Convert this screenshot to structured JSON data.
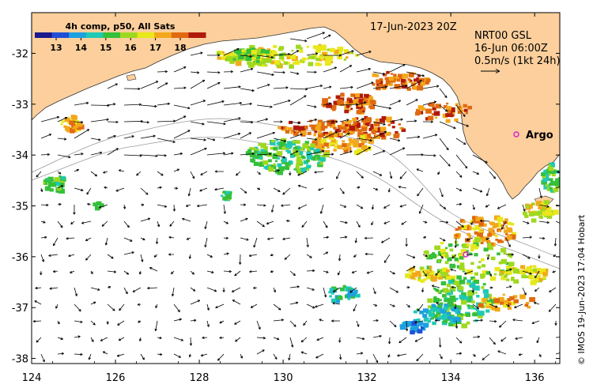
{
  "title_date": "17-Jun-2023 20Z",
  "legend": {
    "title": "4h comp, p50, All Sats",
    "ticks": [
      "13",
      "14",
      "15",
      "16",
      "17",
      "18"
    ],
    "colors": [
      "#1a1a8c",
      "#1f4fd6",
      "#1ea0e0",
      "#1fc9b4",
      "#35c03a",
      "#9fd81f",
      "#e8e81a",
      "#f2a81a",
      "#e06a10",
      "#b01a0a"
    ]
  },
  "currents": {
    "line1": "NRT00 GSL",
    "line2": "16-Jun 06:00Z",
    "line3": "0.5m/s (1kt 24h)"
  },
  "argo": {
    "label": "Argo",
    "color": "#e020d0"
  },
  "credit": "© IMOS 19-Jun-2023 17:04 Hobart",
  "axes": {
    "x_labels": [
      "124",
      "126",
      "128",
      "130",
      "132",
      "134",
      "136"
    ],
    "y_labels": [
      "-32",
      "-33",
      "-34",
      "-35",
      "-36",
      "-37",
      "-38"
    ],
    "lon_range": [
      124,
      136.6
    ],
    "lat_range": [
      -38.1,
      -31.2
    ]
  },
  "colors": {
    "land": "#fccf9c",
    "coast": "#333333",
    "shelf_contour": "#9a9a9a"
  }
}
